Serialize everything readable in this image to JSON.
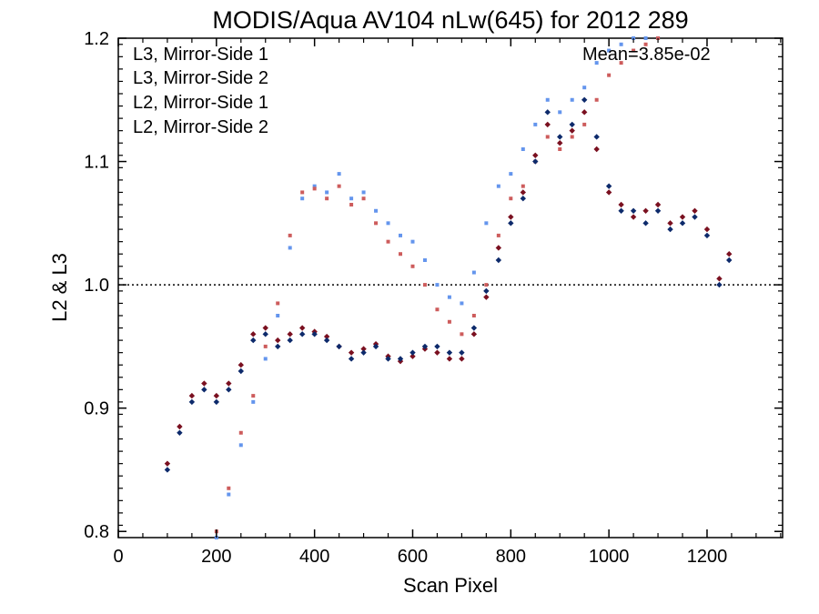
{
  "chart_data": {
    "type": "scatter",
    "title": "MODIS/Aqua AV104 nLw(645) for 2012 289",
    "xlabel": "Scan Pixel",
    "ylabel": "L2 & L3",
    "xlim": [
      0,
      1354
    ],
    "ylim": [
      0.795,
      1.2
    ],
    "xticks": [
      0,
      200,
      400,
      600,
      800,
      1000,
      1200
    ],
    "xtick_labels": [
      "0",
      "200",
      "400",
      "600",
      "800",
      "1000",
      "1200"
    ],
    "yticks": [
      0.8,
      0.9,
      1.0,
      1.1,
      1.2
    ],
    "ytick_labels": [
      "0.8",
      "0.9",
      "1.0",
      "1.1",
      "1.2"
    ],
    "reference_line": {
      "y": 1.0,
      "style": "dotted"
    },
    "annotation": "Mean=3.85e-02",
    "annotation_color": "#cd5c5c",
    "legend_position": "top-left",
    "grid": false,
    "series": [
      {
        "name": "L3, Mirror-Side 1",
        "color": "#0d2a6b",
        "marker": "diamond",
        "x": [
          100,
          125,
          150,
          175,
          200,
          225,
          250,
          275,
          300,
          325,
          350,
          375,
          400,
          425,
          450,
          475,
          500,
          525,
          550,
          575,
          600,
          625,
          650,
          675,
          700,
          725,
          750,
          775,
          800,
          825,
          850,
          875,
          900,
          925,
          950,
          975,
          1000,
          1025,
          1050,
          1075,
          1100,
          1125,
          1150,
          1175,
          1200,
          1225,
          1245
        ],
        "y": [
          0.85,
          0.88,
          0.905,
          0.915,
          0.905,
          0.915,
          0.93,
          0.955,
          0.96,
          0.95,
          0.955,
          0.96,
          0.96,
          0.955,
          0.95,
          0.94,
          0.945,
          0.95,
          0.94,
          0.94,
          0.945,
          0.95,
          0.95,
          0.945,
          0.945,
          0.965,
          0.995,
          1.02,
          1.05,
          1.07,
          1.1,
          1.14,
          1.12,
          1.13,
          1.15,
          1.12,
          1.08,
          1.06,
          1.06,
          1.05,
          1.06,
          1.045,
          1.05,
          1.055,
          1.04,
          1.0,
          1.02
        ]
      },
      {
        "name": "L3, Mirror-Side 2",
        "color": "#7a1020",
        "marker": "diamond",
        "x": [
          100,
          125,
          150,
          175,
          200,
          225,
          250,
          275,
          300,
          325,
          350,
          375,
          400,
          425,
          450,
          475,
          500,
          525,
          550,
          575,
          600,
          625,
          650,
          675,
          700,
          725,
          750,
          775,
          800,
          825,
          850,
          875,
          900,
          925,
          950,
          975,
          1000,
          1025,
          1050,
          1075,
          1100,
          1125,
          1150,
          1175,
          1200,
          1225,
          1245
        ],
        "y": [
          0.855,
          0.885,
          0.91,
          0.92,
          0.91,
          0.92,
          0.935,
          0.96,
          0.965,
          0.955,
          0.96,
          0.965,
          0.962,
          0.958,
          0.95,
          0.945,
          0.948,
          0.952,
          0.942,
          0.938,
          0.942,
          0.948,
          0.945,
          0.94,
          0.94,
          0.96,
          0.99,
          1.03,
          1.055,
          1.075,
          1.105,
          1.13,
          1.115,
          1.125,
          1.14,
          1.11,
          1.075,
          1.065,
          1.055,
          1.06,
          1.065,
          1.05,
          1.055,
          1.06,
          1.045,
          1.005,
          1.025
        ]
      },
      {
        "name": "L2, Mirror-Side 1",
        "color": "#6495ed",
        "marker": "square",
        "x": [
          200,
          225,
          250,
          275,
          300,
          325,
          350,
          375,
          400,
          425,
          450,
          475,
          500,
          525,
          550,
          575,
          600,
          625,
          650,
          675,
          700,
          725,
          750,
          775,
          800,
          825,
          850,
          875,
          900,
          925,
          950,
          975,
          1000,
          1025,
          1050,
          1075,
          1100
        ],
        "y": [
          0.795,
          0.83,
          0.87,
          0.905,
          0.94,
          0.975,
          1.03,
          1.07,
          1.08,
          1.075,
          1.09,
          1.07,
          1.075,
          1.06,
          1.05,
          1.04,
          1.035,
          1.02,
          1.0,
          0.99,
          0.985,
          1.01,
          1.05,
          1.08,
          1.09,
          1.11,
          1.13,
          1.15,
          1.14,
          1.15,
          1.16,
          1.18,
          1.19,
          1.195,
          1.2,
          1.2,
          1.2
        ]
      },
      {
        "name": "L2, Mirror-Side 2",
        "color": "#cd5c5c",
        "marker": "square",
        "x": [
          200,
          225,
          250,
          275,
          300,
          325,
          350,
          375,
          400,
          425,
          450,
          475,
          500,
          525,
          550,
          575,
          600,
          625,
          650,
          675,
          700,
          725,
          750,
          775,
          800,
          825,
          850,
          875,
          900,
          925,
          950,
          975,
          1000,
          1025,
          1050,
          1075,
          1100
        ],
        "y": [
          0.8,
          0.835,
          0.88,
          0.91,
          0.95,
          0.985,
          1.04,
          1.075,
          1.078,
          1.07,
          1.08,
          1.065,
          1.07,
          1.05,
          1.035,
          1.025,
          1.015,
          1.0,
          0.98,
          0.97,
          0.96,
          0.975,
          1.0,
          1.04,
          1.07,
          1.08,
          1.1,
          1.12,
          1.11,
          1.12,
          1.13,
          1.15,
          1.17,
          1.18,
          1.19,
          1.195,
          1.2
        ]
      }
    ]
  }
}
